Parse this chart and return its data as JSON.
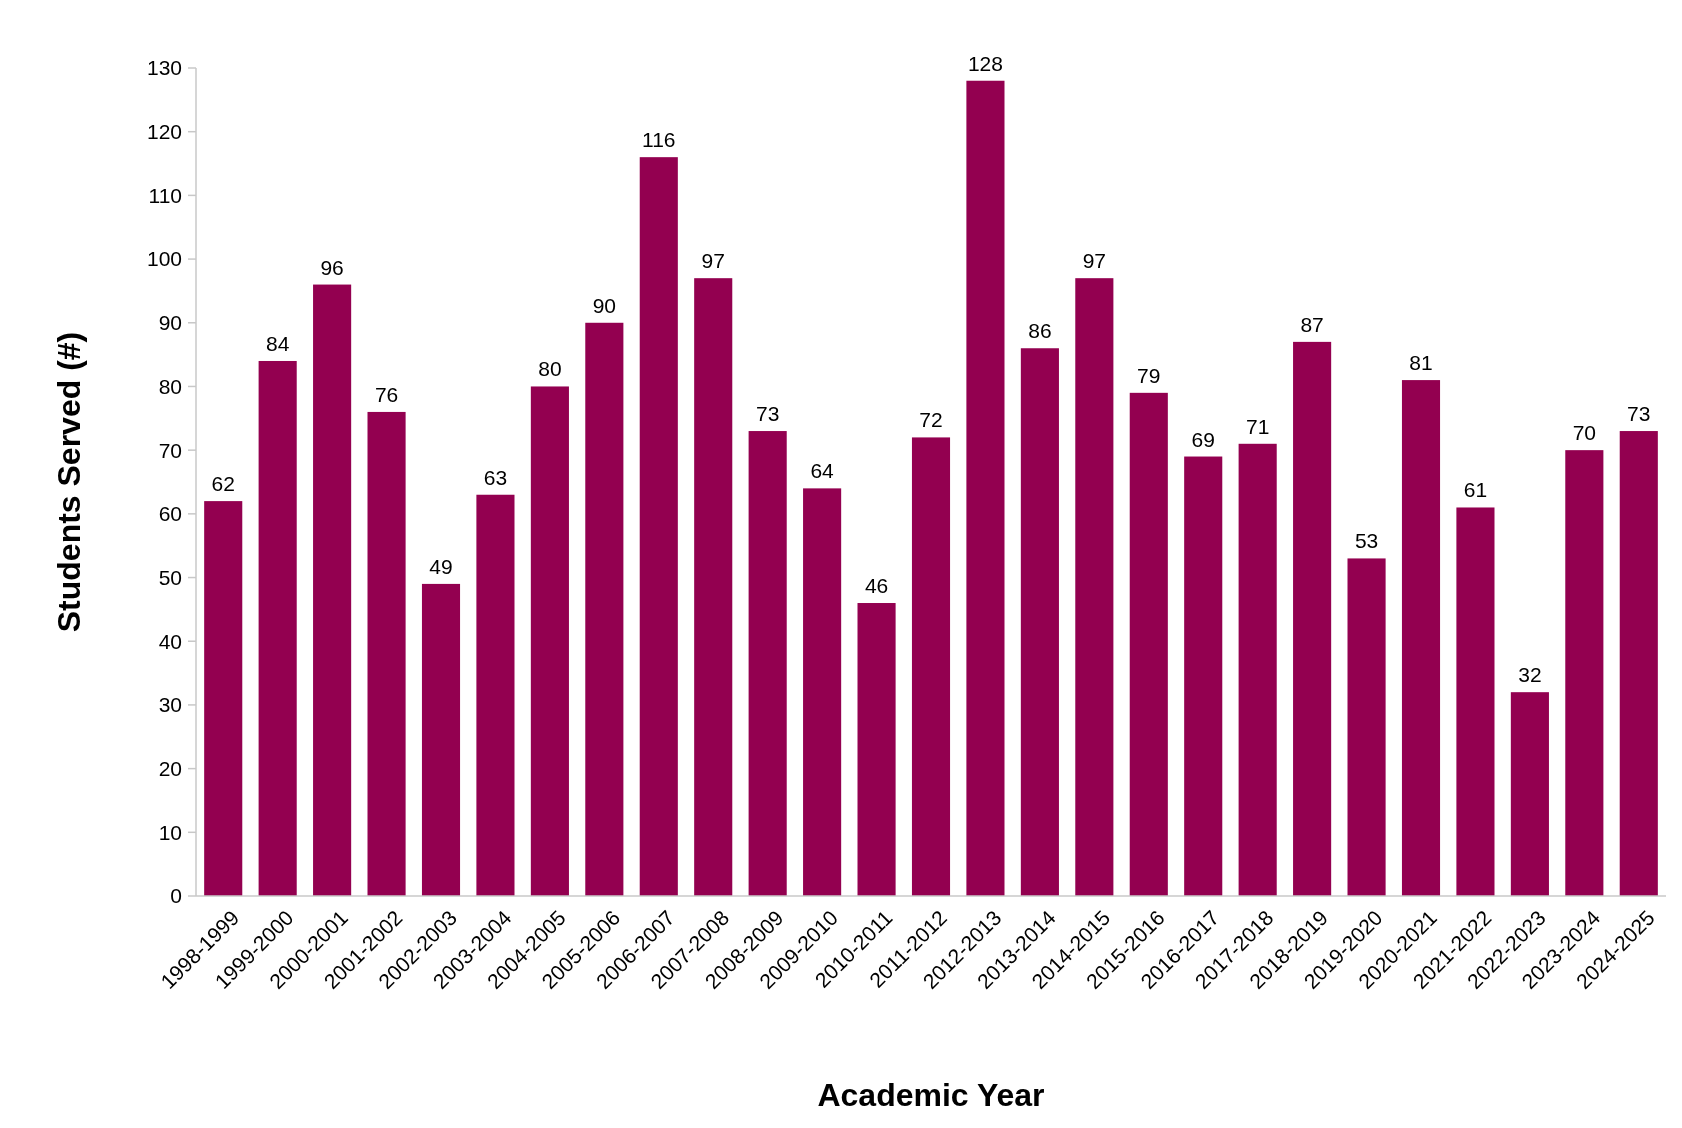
{
  "chart_data": {
    "type": "bar",
    "xlabel": "Academic Year",
    "ylabel": "Students Served (#)",
    "categories": [
      "1998-1999",
      "1999-2000",
      "2000-2001",
      "2001-2002",
      "2002-2003",
      "2003-2004",
      "2004-2005",
      "2005-2006",
      "2006-2007",
      "2007-2008",
      "2008-2009",
      "2009-2010",
      "2010-2011",
      "2011-2012",
      "2012-2013",
      "2013-2014",
      "2014-2015",
      "2015-2016",
      "2016-2017",
      "2017-2018",
      "2018-2019",
      "2019-2020",
      "2020-2021",
      "2021-2022",
      "2022-2023",
      "2023-2024",
      "2024-2025"
    ],
    "values": [
      62,
      84,
      96,
      76,
      49,
      63,
      80,
      90,
      116,
      97,
      73,
      64,
      46,
      72,
      128,
      86,
      97,
      79,
      69,
      71,
      87,
      53,
      81,
      61,
      32,
      70,
      73
    ],
    "color": "#930050",
    "ylim": [
      0,
      130
    ],
    "yticks": [
      0,
      10,
      20,
      30,
      40,
      50,
      60,
      70,
      80,
      90,
      100,
      110,
      120,
      130
    ],
    "grid": false,
    "data_labels": true
  }
}
